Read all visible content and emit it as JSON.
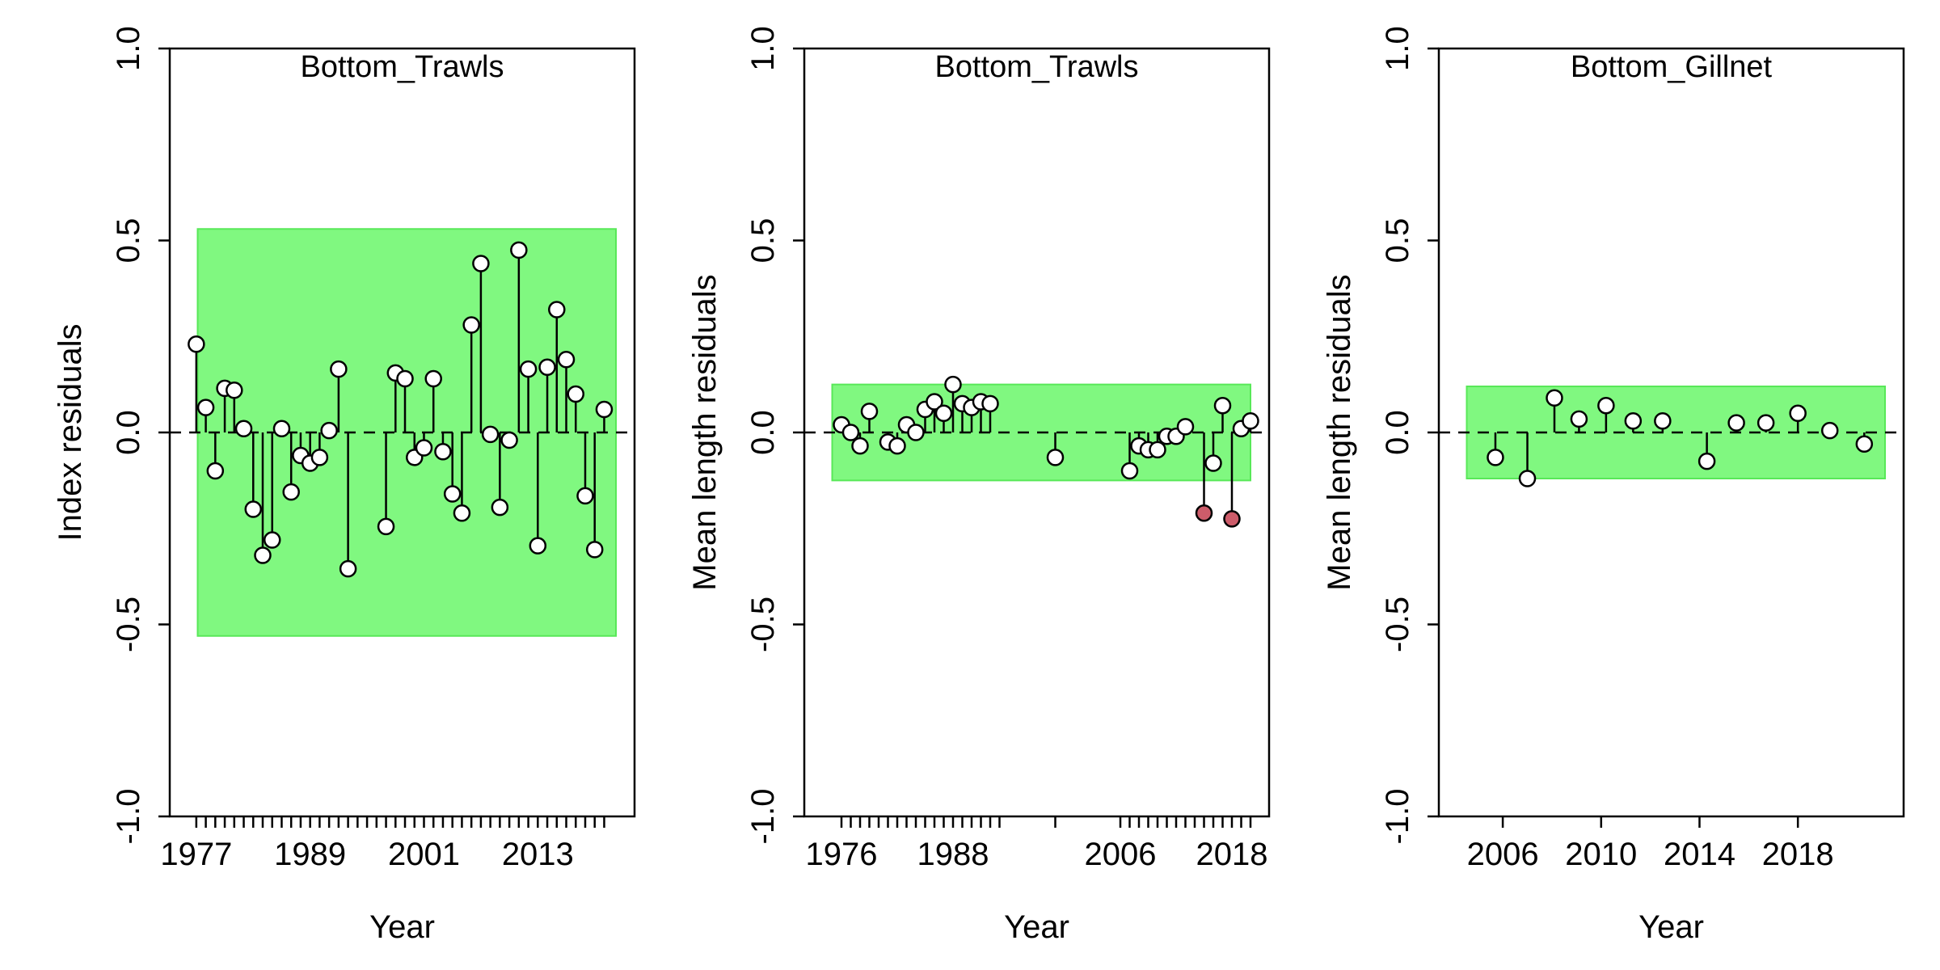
{
  "colors": {
    "band_fill": "#80F880",
    "band_stroke": "#58E858",
    "point_fill": "#FFFFFF",
    "outlier_fill": "#CD5C6A",
    "line": "#000000"
  },
  "chart_data": [
    {
      "type": "scatter",
      "style": "residual-stems",
      "title": "Bottom_Trawls",
      "xlabel": "Year",
      "ylabel": "Index residuals",
      "xlim": [
        1974.2,
        2023.2
      ],
      "ylim": [
        -1.0,
        1.0
      ],
      "yticks": [
        "-1.0",
        "-0.5",
        "0.0",
        "0.5",
        "1.0"
      ],
      "xticks": [
        1977,
        1978,
        1979,
        1980,
        1981,
        1982,
        1983,
        1984,
        1985,
        1986,
        1987,
        1988,
        1989,
        1990,
        1991,
        1992,
        1993,
        1994,
        1995,
        1996,
        1997,
        1998,
        1999,
        2000,
        2001,
        2002,
        2003,
        2004,
        2005,
        2006,
        2007,
        2008,
        2009,
        2010,
        2011,
        2012,
        2013,
        2014,
        2015,
        2016,
        2017,
        2018,
        2019,
        2020
      ],
      "xtick_labels": [
        "1977",
        "1989",
        "2001",
        "2013"
      ],
      "band": [
        -0.53,
        0.53
      ],
      "points": [
        {
          "x": 1977,
          "y": 0.23
        },
        {
          "x": 1978,
          "y": 0.065
        },
        {
          "x": 1979,
          "y": -0.1
        },
        {
          "x": 1980,
          "y": 0.115
        },
        {
          "x": 1981,
          "y": 0.11
        },
        {
          "x": 1982,
          "y": 0.01
        },
        {
          "x": 1983,
          "y": -0.2
        },
        {
          "x": 1984,
          "y": -0.32
        },
        {
          "x": 1985,
          "y": -0.28
        },
        {
          "x": 1986,
          "y": 0.01
        },
        {
          "x": 1987,
          "y": -0.155
        },
        {
          "x": 1988,
          "y": -0.06
        },
        {
          "x": 1989,
          "y": -0.08
        },
        {
          "x": 1990,
          "y": -0.065
        },
        {
          "x": 1991,
          "y": 0.005
        },
        {
          "x": 1992,
          "y": 0.165
        },
        {
          "x": 1993,
          "y": -0.355
        },
        {
          "x": 1997,
          "y": -0.245
        },
        {
          "x": 1998,
          "y": 0.155
        },
        {
          "x": 1999,
          "y": 0.14
        },
        {
          "x": 2000,
          "y": -0.065
        },
        {
          "x": 2001,
          "y": -0.04
        },
        {
          "x": 2002,
          "y": 0.14
        },
        {
          "x": 2003,
          "y": -0.05
        },
        {
          "x": 2004,
          "y": -0.16
        },
        {
          "x": 2005,
          "y": -0.21
        },
        {
          "x": 2006,
          "y": 0.28
        },
        {
          "x": 2007,
          "y": 0.44
        },
        {
          "x": 2008,
          "y": -0.005
        },
        {
          "x": 2009,
          "y": -0.195
        },
        {
          "x": 2010,
          "y": -0.02
        },
        {
          "x": 2011,
          "y": 0.475
        },
        {
          "x": 2012,
          "y": 0.165
        },
        {
          "x": 2013,
          "y": -0.295
        },
        {
          "x": 2014,
          "y": 0.17
        },
        {
          "x": 2015,
          "y": 0.32
        },
        {
          "x": 2016,
          "y": 0.19
        },
        {
          "x": 2017,
          "y": 0.1
        },
        {
          "x": 2018,
          "y": -0.165
        },
        {
          "x": 2019,
          "y": -0.305
        },
        {
          "x": 2020,
          "y": 0.06
        }
      ],
      "outliers": []
    },
    {
      "type": "scatter",
      "style": "residual-stems",
      "title": "Bottom_Trawls",
      "xlabel": "Year",
      "ylabel": "Mean length residuals",
      "xlim": [
        1972.0,
        2022.0
      ],
      "ylim": [
        -1.0,
        1.0
      ],
      "yticks": [
        "-1.0",
        "-0.5",
        "0.0",
        "0.5",
        "1.0"
      ],
      "xticks": [
        1976,
        1977,
        1978,
        1979,
        1980,
        1981,
        1982,
        1983,
        1984,
        1985,
        1986,
        1987,
        1988,
        1989,
        1990,
        1991,
        1992,
        1993,
        1999,
        2006,
        2007,
        2008,
        2009,
        2010,
        2011,
        2012,
        2013,
        2014,
        2015,
        2016,
        2017,
        2018,
        2019,
        2020
      ],
      "xtick_labels": [
        "1976",
        "1988",
        "2006",
        "2018"
      ],
      "band": [
        -0.125,
        0.125
      ],
      "points": [
        {
          "x": 1976,
          "y": 0.02
        },
        {
          "x": 1977,
          "y": 0.0
        },
        {
          "x": 1978,
          "y": -0.035
        },
        {
          "x": 1979,
          "y": 0.055
        },
        {
          "x": 1981,
          "y": -0.025
        },
        {
          "x": 1982,
          "y": -0.035
        },
        {
          "x": 1983,
          "y": 0.02
        },
        {
          "x": 1984,
          "y": 0.0
        },
        {
          "x": 1985,
          "y": 0.06
        },
        {
          "x": 1986,
          "y": 0.08
        },
        {
          "x": 1987,
          "y": 0.05
        },
        {
          "x": 1988,
          "y": 0.125
        },
        {
          "x": 1989,
          "y": 0.075
        },
        {
          "x": 1990,
          "y": 0.065
        },
        {
          "x": 1991,
          "y": 0.08
        },
        {
          "x": 1992,
          "y": 0.075
        },
        {
          "x": 1999,
          "y": -0.065
        },
        {
          "x": 2007,
          "y": -0.1
        },
        {
          "x": 2008,
          "y": -0.035
        },
        {
          "x": 2009,
          "y": -0.045
        },
        {
          "x": 2010,
          "y": -0.045
        },
        {
          "x": 2011,
          "y": -0.01
        },
        {
          "x": 2012,
          "y": -0.01
        },
        {
          "x": 2013,
          "y": 0.015
        },
        {
          "x": 2016,
          "y": -0.08
        },
        {
          "x": 2017,
          "y": 0.07
        },
        {
          "x": 2019,
          "y": 0.01
        },
        {
          "x": 2020,
          "y": 0.03
        }
      ],
      "outliers": [
        {
          "x": 2015,
          "y": -0.21
        },
        {
          "x": 2018,
          "y": -0.225
        }
      ]
    },
    {
      "type": "scatter",
      "style": "residual-stems",
      "title": "Bottom_Gillnet",
      "xlabel": "Year",
      "ylabel": "Mean length residuals",
      "xlim": [
        2003.4,
        2022.3
      ],
      "ylim": [
        -1.0,
        1.0
      ],
      "yticks": [
        "-1.0",
        "-0.5",
        "0.0",
        "0.5",
        "1.0"
      ],
      "xticks": [
        2006,
        2010,
        2014,
        2018
      ],
      "xtick_labels": [
        "2006",
        "2010",
        "2014",
        "2018"
      ],
      "band": [
        -0.12,
        0.12
      ],
      "points": [
        {
          "x": 2005.7,
          "y": -0.065
        },
        {
          "x": 2007.0,
          "y": -0.12
        },
        {
          "x": 2008.1,
          "y": 0.09
        },
        {
          "x": 2009.1,
          "y": 0.035
        },
        {
          "x": 2010.2,
          "y": 0.07
        },
        {
          "x": 2011.3,
          "y": 0.03
        },
        {
          "x": 2012.5,
          "y": 0.03
        },
        {
          "x": 2014.3,
          "y": -0.075
        },
        {
          "x": 2015.5,
          "y": 0.025
        },
        {
          "x": 2016.7,
          "y": 0.025
        },
        {
          "x": 2018.0,
          "y": 0.05
        },
        {
          "x": 2019.3,
          "y": 0.005
        },
        {
          "x": 2020.7,
          "y": -0.03
        }
      ],
      "outliers": []
    }
  ]
}
